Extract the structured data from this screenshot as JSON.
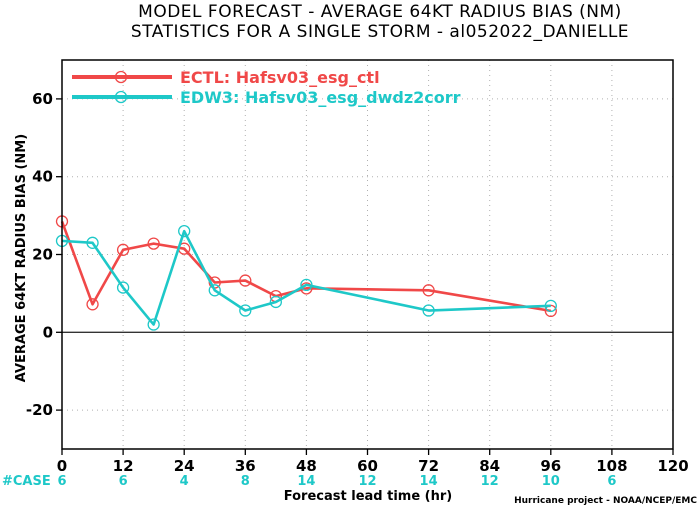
{
  "chart_data": {
    "type": "line",
    "title": "MODEL FORECAST - AVERAGE 64KT RADIUS BIAS (NM)",
    "subtitle": "STATISTICS FOR A SINGLE STORM - al052022_DANIELLE",
    "xlabel": "Forecast lead time (hr)",
    "ylabel": "AVERAGE 64KT RADIUS BIAS (NM)",
    "xlim": [
      0,
      120
    ],
    "ylim": [
      -30,
      70
    ],
    "xticks": [
      0,
      12,
      24,
      36,
      48,
      60,
      72,
      84,
      96,
      108,
      120
    ],
    "yticks": [
      -20,
      0,
      20,
      40,
      60
    ],
    "grid": true,
    "legend_position": "top-left",
    "series": [
      {
        "name": "ECTL: Hafsv03_esg_ctl",
        "color": "#f04848",
        "x": [
          0,
          6,
          12,
          18,
          24,
          30,
          36,
          42,
          48,
          72,
          96
        ],
        "y": [
          28.5,
          7.2,
          21.2,
          22.8,
          21.5,
          12.8,
          13.3,
          9.3,
          11.3,
          10.8,
          5.5
        ]
      },
      {
        "name": "EDW3: Hafsv03_esg_dwdz2corr",
        "color": "#1ec8c8",
        "x": [
          0,
          6,
          12,
          18,
          24,
          30,
          36,
          42,
          48,
          72,
          96
        ],
        "y": [
          23.5,
          23.0,
          11.5,
          2.0,
          26.0,
          10.8,
          5.6,
          7.8,
          12.2,
          5.6,
          6.8
        ]
      }
    ],
    "case_label": "#CASE",
    "case_label_color": "#1ec8c8",
    "cases": [
      {
        "x": 0,
        "label": "6"
      },
      {
        "x": 12,
        "label": "6"
      },
      {
        "x": 24,
        "label": "4"
      },
      {
        "x": 36,
        "label": "8"
      },
      {
        "x": 48,
        "label": "14"
      },
      {
        "x": 60,
        "label": "12"
      },
      {
        "x": 72,
        "label": "14"
      },
      {
        "x": 84,
        "label": "12"
      },
      {
        "x": 96,
        "label": "10"
      },
      {
        "x": 108,
        "label": "6"
      }
    ]
  },
  "credit": "Hurricane project - NOAA/NCEP/EMC"
}
